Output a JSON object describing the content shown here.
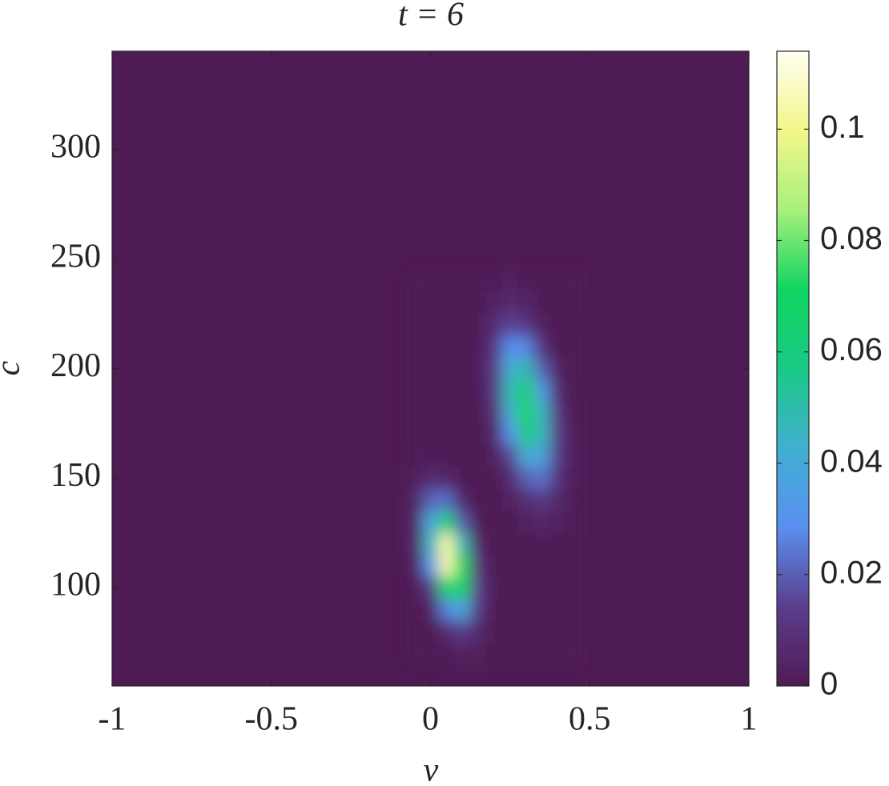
{
  "chart_data": {
    "type": "contour",
    "title": "t = 6",
    "xlabel": "v",
    "ylabel": "c",
    "xlim": [
      -1,
      1
    ],
    "xticks": [
      -1,
      -0.5,
      0,
      0.5,
      1
    ],
    "ylim": [
      55,
      345
    ],
    "yticks": [
      100,
      150,
      200,
      250,
      300
    ],
    "clim": [
      0,
      0.114
    ],
    "cticks": [
      0,
      0.02,
      0.04,
      0.06,
      0.08,
      0.1
    ],
    "colormap": [
      "#4f1b55",
      "#5b3d8c",
      "#5a8ff0",
      "#41b0d0",
      "#19c985",
      "#10d560",
      "#a8f07c",
      "#f2f78a",
      "#fffff2"
    ],
    "x": [
      -0.05,
      0,
      0.05,
      0.1,
      0.15,
      0.2,
      0.25,
      0.3,
      0.35,
      0.4,
      0.45
    ],
    "y": [
      70,
      80,
      90,
      100,
      110,
      120,
      130,
      140,
      150,
      160,
      170,
      180,
      190,
      200,
      210,
      220,
      230,
      240
    ],
    "z": [
      [
        0,
        0,
        0.0013,
        0.003,
        0.0019,
        0,
        0,
        0,
        0,
        0,
        0
      ],
      [
        0,
        0.0006,
        0.0062,
        0.0135,
        0.0062,
        0.0006,
        0,
        0,
        0,
        0,
        0
      ],
      [
        0,
        0.0036,
        0.026,
        0.038,
        0.012,
        0.0008,
        0,
        0,
        0,
        0,
        0
      ],
      [
        0.0006,
        0.0136,
        0.066,
        0.067,
        0.0144,
        0.0007,
        0,
        0,
        0,
        0,
        0
      ],
      [
        0.002,
        0.031,
        0.104,
        0.073,
        0.011,
        0,
        0,
        0,
        0,
        0,
        0
      ],
      [
        0.004,
        0.045,
        0.103,
        0.049,
        0.005,
        0,
        0,
        0.0008,
        0.0014,
        0.0009,
        0
      ],
      [
        0.005,
        0.039,
        0.062,
        0.02,
        0.0014,
        0,
        0.0006,
        0.0026,
        0.0044,
        0.0028,
        0.0006
      ],
      [
        0.004,
        0.021,
        0.023,
        0.005,
        0,
        0.0002,
        0.0021,
        0.0082,
        0.0116,
        0.006,
        0.0011
      ],
      [
        0.002,
        0.0072,
        0.0054,
        0.0009,
        0,
        0.0008,
        0.0065,
        0.02,
        0.0235,
        0.01,
        0.0015
      ],
      [
        0.0005,
        0.0015,
        0.0012,
        0,
        0,
        0.0022,
        0.0154,
        0.0396,
        0.0373,
        0.0129,
        0.0016
      ],
      [
        0,
        0,
        0,
        0,
        0.0003,
        0.005,
        0.029,
        0.06,
        0.046,
        0.013,
        0.0014
      ],
      [
        0,
        0,
        0,
        0,
        0.0007,
        0.009,
        0.042,
        0.072,
        0.045,
        0.0106,
        0.0009
      ],
      [
        0,
        0,
        0,
        0,
        0.0012,
        0.012,
        0.047,
        0.067,
        0.034,
        0.0066,
        0
      ],
      [
        0,
        0,
        0,
        0,
        0.0015,
        0.0134,
        0.042,
        0.048,
        0.0204,
        0.003,
        0
      ],
      [
        0,
        0,
        0,
        0,
        0.0016,
        0.0112,
        0.029,
        0.027,
        0.0096,
        0.0012,
        0
      ],
      [
        0,
        0,
        0,
        0,
        0.0013,
        0.0075,
        0.0157,
        0.0122,
        0.0034,
        0.0003,
        0
      ],
      [
        0,
        0,
        0,
        0,
        0.0009,
        0.0039,
        0.0067,
        0.0042,
        0.001,
        0,
        0
      ],
      [
        0,
        0,
        0,
        0,
        0,
        0.0015,
        0.0022,
        0.0012,
        0,
        0,
        0
      ]
    ]
  }
}
